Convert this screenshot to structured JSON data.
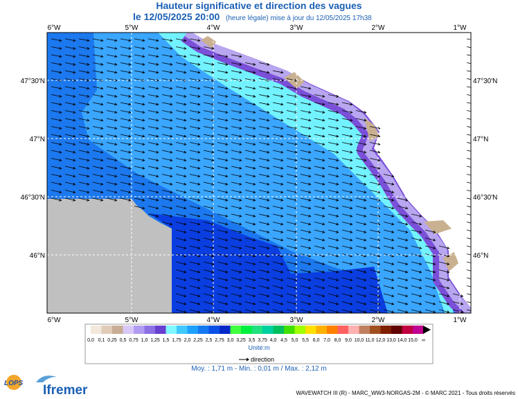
{
  "header": {
    "title": "Hauteur significative et direction des vagues",
    "subtitle": "le 12/05/2025 20:00",
    "note": "(heure légale) mise à jour du 12/05/2025 17h38"
  },
  "map": {
    "lon_labels": [
      "6°W",
      "5°W",
      "4°W",
      "3°W",
      "2°W",
      "1°W"
    ],
    "lat_labels": [
      "47°30'N",
      "47°N",
      "46°30'N",
      "46°N"
    ]
  },
  "legend": {
    "labels": [
      "0,0",
      "0,1",
      "0,25",
      "0,5",
      "0,75",
      "1,0",
      "1,25",
      "1,5",
      "1,75",
      "2,0",
      "2,25",
      "2,5",
      "2,75",
      "3,0",
      "3,25",
      "3,5",
      "3,75",
      "4,0",
      "4,5",
      "5,0",
      "5,5",
      "6,0",
      "7,0",
      "8,0",
      "9,0",
      "10,0",
      "11,0",
      "12,0",
      "13,0",
      "14,0",
      "15,0",
      "∞"
    ],
    "colors": [
      "#f4e8dc",
      "#e0ccb8",
      "#c8ac94",
      "#d8c8f8",
      "#b09cf0",
      "#8c70e4",
      "#6a40d0",
      "#80f8ff",
      "#40c8ff",
      "#1ea0ff",
      "#1478f0",
      "#0a50e8",
      "#0028c8",
      "#40ff40",
      "#00f040",
      "#20e080",
      "#00d0a0",
      "#00c060",
      "#40e000",
      "#a0ff00",
      "#ffe000",
      "#ffb000",
      "#ff8000",
      "#ff6060",
      "#ffb0b0",
      "#c08060",
      "#a05020",
      "#802000",
      "#600000",
      "#c00040",
      "#c00090"
    ],
    "unit": "Unité:m",
    "direction": "direction",
    "stats": "Moy. : 1,71 m   -   Min. : 0,01 m / Max. : 2,12 m"
  },
  "footer": {
    "credit": "WAVEWATCH III (R) - MARC_WW3-NORGAS-2M - © MARC 2021 - Tous droits réservés",
    "logo_lops": "LOPS",
    "logo_ifremer": "Ifremer"
  }
}
